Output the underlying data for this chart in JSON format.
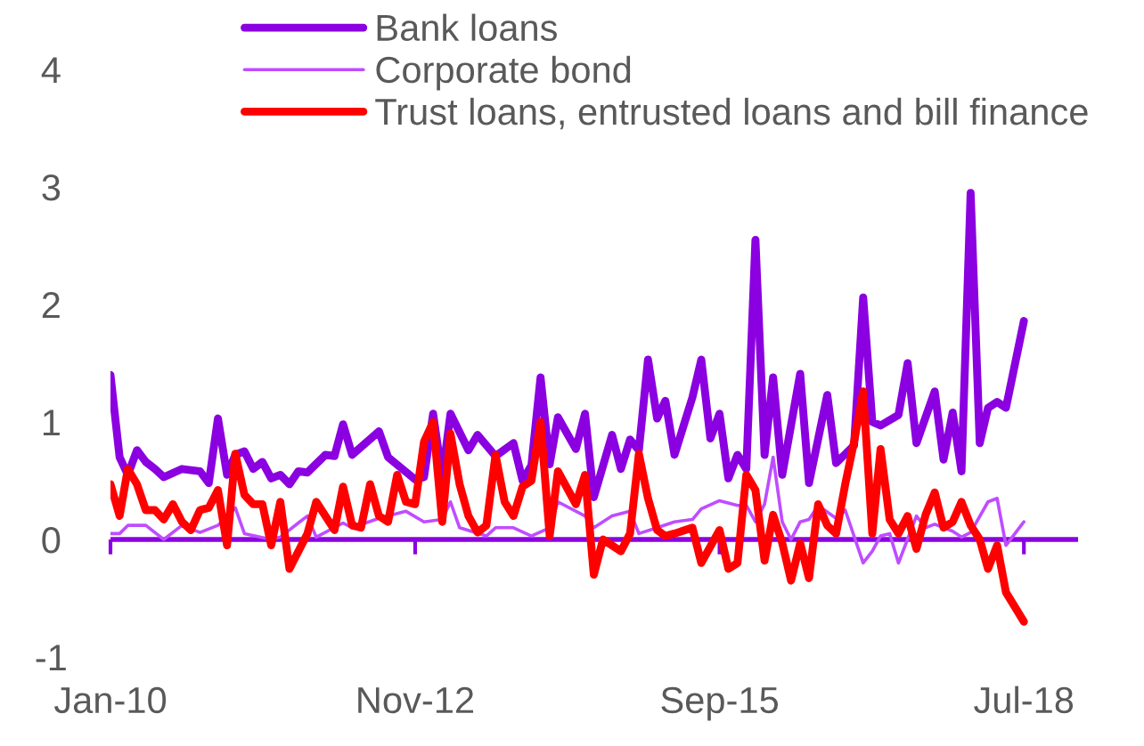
{
  "chart_data": {
    "type": "line",
    "xlim": [
      "2010-01",
      "2019-01"
    ],
    "ylim": [
      -1,
      4
    ],
    "yticks": [
      -1,
      0,
      1,
      2,
      3,
      4
    ],
    "xticks": [
      {
        "value": "2010-01",
        "label": "Jan-10"
      },
      {
        "value": "2012-11",
        "label": "Nov-12"
      },
      {
        "value": "2015-09",
        "label": "Sep-15"
      },
      {
        "value": "2018-07",
        "label": "Jul-18"
      }
    ],
    "grid": false,
    "legend": "top",
    "marker": "none",
    "line_style": "solid",
    "ref_lines": [
      {
        "axis": "y",
        "value": 0,
        "label": null,
        "color": "#8b00e0"
      }
    ],
    "series": [
      {
        "name": "Bank loans",
        "color": "#8b00e0",
        "x": [
          "2010-01",
          "2010-02",
          "2010-03",
          "2010-04",
          "2010-05",
          "2010-06",
          "2010-07",
          "2010-09",
          "2010-11",
          "2010-12",
          "2011-01",
          "2011-02",
          "2011-03",
          "2011-04",
          "2011-05",
          "2011-06",
          "2011-07",
          "2011-08",
          "2011-09",
          "2011-10",
          "2011-11",
          "2012-01",
          "2012-02",
          "2012-03",
          "2012-04",
          "2012-07",
          "2012-08",
          "2012-11",
          "2012-12",
          "2013-01",
          "2013-02",
          "2013-03",
          "2013-05",
          "2013-06",
          "2013-08",
          "2013-10",
          "2013-11",
          "2013-12",
          "2014-01",
          "2014-02",
          "2014-03",
          "2014-05",
          "2014-06",
          "2014-07",
          "2014-09",
          "2014-10",
          "2014-11",
          "2014-12",
          "2015-01",
          "2015-02",
          "2015-03",
          "2015-04",
          "2015-06",
          "2015-07",
          "2015-08",
          "2015-09",
          "2015-10",
          "2015-11",
          "2015-12",
          "2016-01",
          "2016-02",
          "2016-03",
          "2016-04",
          "2016-06",
          "2016-07",
          "2016-09",
          "2016-10",
          "2016-12",
          "2017-01",
          "2017-02",
          "2017-03",
          "2017-05",
          "2017-06",
          "2017-07",
          "2017-09",
          "2017-10",
          "2017-11",
          "2017-12",
          "2018-01",
          "2018-02",
          "2018-03",
          "2018-04",
          "2018-05",
          "2018-07"
        ],
        "values": [
          1.4,
          0.7,
          0.55,
          0.76,
          0.66,
          0.6,
          0.53,
          0.6,
          0.58,
          0.48,
          1.03,
          0.55,
          0.72,
          0.75,
          0.6,
          0.66,
          0.52,
          0.55,
          0.47,
          0.58,
          0.57,
          0.72,
          0.71,
          0.98,
          0.72,
          0.92,
          0.7,
          0.51,
          0.53,
          1.07,
          0.53,
          1.07,
          0.76,
          0.89,
          0.71,
          0.82,
          0.5,
          0.63,
          1.38,
          0.64,
          1.04,
          0.77,
          1.07,
          0.36,
          0.89,
          0.6,
          0.85,
          0.76,
          1.53,
          1.03,
          1.18,
          0.72,
          1.21,
          1.53,
          0.86,
          1.07,
          0.52,
          0.72,
          0.6,
          2.55,
          0.72,
          1.38,
          0.55,
          1.41,
          0.48,
          1.23,
          0.65,
          0.8,
          2.06,
          1.0,
          0.97,
          1.06,
          1.5,
          0.82,
          1.26,
          0.68,
          1.08,
          0.58,
          2.95,
          0.82,
          1.12,
          1.17,
          1.12,
          1.86
        ]
      },
      {
        "name": "Corporate bond",
        "color": "#bf4dff",
        "x": [
          "2010-01",
          "2010-02",
          "2010-03",
          "2010-05",
          "2010-07",
          "2010-09",
          "2010-11",
          "2011-01",
          "2011-03",
          "2011-04",
          "2011-07",
          "2011-08",
          "2011-10",
          "2011-11",
          "2011-12",
          "2012-03",
          "2012-04",
          "2012-07",
          "2012-08",
          "2012-10",
          "2012-12",
          "2013-02",
          "2013-03",
          "2013-04",
          "2013-07",
          "2013-08",
          "2013-10",
          "2013-12",
          "2014-02",
          "2014-03",
          "2014-06",
          "2014-07",
          "2014-09",
          "2014-11",
          "2014-12",
          "2015-02",
          "2015-04",
          "2015-06",
          "2015-07",
          "2015-09",
          "2015-11",
          "2015-12",
          "2016-01",
          "2016-02",
          "2016-03",
          "2016-04",
          "2016-05",
          "2016-06",
          "2016-07",
          "2016-08",
          "2016-10",
          "2016-11",
          "2017-01",
          "2017-02",
          "2017-03",
          "2017-04",
          "2017-05",
          "2017-07",
          "2017-08",
          "2017-09",
          "2017-11",
          "2017-12",
          "2018-01",
          "2018-03",
          "2018-04",
          "2018-05",
          "2018-07"
        ],
        "values": [
          0.05,
          0.05,
          0.12,
          0.12,
          0.0,
          0.12,
          0.06,
          0.12,
          0.27,
          0.05,
          0.0,
          0.02,
          0.14,
          0.2,
          0.02,
          0.14,
          0.1,
          0.18,
          0.2,
          0.24,
          0.15,
          0.17,
          0.32,
          0.1,
          0.03,
          0.1,
          0.1,
          0.03,
          0.1,
          0.32,
          0.2,
          0.1,
          0.2,
          0.24,
          0.05,
          0.1,
          0.15,
          0.17,
          0.26,
          0.33,
          0.29,
          0.29,
          0.15,
          0.3,
          0.7,
          0.15,
          0.0,
          0.15,
          0.17,
          0.29,
          0.18,
          0.25,
          -0.2,
          -0.1,
          0.03,
          0.05,
          -0.2,
          0.2,
          0.1,
          0.13,
          0.07,
          0.02,
          0.06,
          0.32,
          0.35,
          -0.05,
          0.15
        ]
      },
      {
        "name": "Trust loans, entrusted loans and bill finance",
        "color": "#ff0000",
        "x": [
          "2010-01",
          "2010-02",
          "2010-03",
          "2010-04",
          "2010-05",
          "2010-06",
          "2010-07",
          "2010-08",
          "2010-09",
          "2010-10",
          "2010-11",
          "2010-12",
          "2011-01",
          "2011-02",
          "2011-03",
          "2011-04",
          "2011-05",
          "2011-06",
          "2011-07",
          "2011-08",
          "2011-09",
          "2011-11",
          "2011-12",
          "2012-02",
          "2012-03",
          "2012-04",
          "2012-05",
          "2012-06",
          "2012-07",
          "2012-08",
          "2012-09",
          "2012-10",
          "2012-11",
          "2012-12",
          "2013-01",
          "2013-02",
          "2013-03",
          "2013-04",
          "2013-05",
          "2013-06",
          "2013-07",
          "2013-08",
          "2013-09",
          "2013-10",
          "2013-11",
          "2013-12",
          "2014-01",
          "2014-02",
          "2014-03",
          "2014-05",
          "2014-06",
          "2014-07",
          "2014-08",
          "2014-10",
          "2014-11",
          "2014-12",
          "2015-01",
          "2015-02",
          "2015-03",
          "2015-04",
          "2015-06",
          "2015-07",
          "2015-09",
          "2015-10",
          "2015-11",
          "2015-12",
          "2016-01",
          "2016-02",
          "2016-03",
          "2016-04",
          "2016-05",
          "2016-06",
          "2016-07",
          "2016-08",
          "2016-09",
          "2016-10",
          "2016-11",
          "2016-12",
          "2017-01",
          "2017-02",
          "2017-03",
          "2017-04",
          "2017-05",
          "2017-06",
          "2017-07",
          "2017-08",
          "2017-09",
          "2017-10",
          "2017-11",
          "2017-12",
          "2018-01",
          "2018-02",
          "2018-03",
          "2018-04",
          "2018-05",
          "2018-07"
        ],
        "values": [
          0.47,
          0.2,
          0.6,
          0.47,
          0.25,
          0.25,
          0.17,
          0.3,
          0.15,
          0.08,
          0.25,
          0.27,
          0.42,
          -0.05,
          0.73,
          0.38,
          0.3,
          0.3,
          -0.05,
          0.32,
          -0.25,
          0.05,
          0.32,
          0.08,
          0.45,
          0.12,
          0.1,
          0.47,
          0.2,
          0.15,
          0.55,
          0.32,
          0.3,
          0.83,
          1.0,
          0.15,
          0.9,
          0.47,
          0.2,
          0.06,
          0.12,
          0.72,
          0.32,
          0.2,
          0.45,
          0.5,
          1.0,
          0.03,
          0.58,
          0.3,
          0.55,
          -0.3,
          0.0,
          -0.1,
          0.05,
          0.73,
          0.35,
          0.08,
          0.03,
          0.05,
          0.1,
          -0.2,
          0.08,
          -0.25,
          -0.2,
          0.55,
          0.42,
          -0.18,
          0.21,
          -0.03,
          -0.35,
          -0.03,
          -0.33,
          0.3,
          0.12,
          0.05,
          0.47,
          0.83,
          1.26,
          0.05,
          0.77,
          0.17,
          0.05,
          0.2,
          -0.08,
          0.21,
          0.4,
          0.1,
          0.15,
          0.32,
          0.12,
          0.0,
          -0.25,
          -0.05,
          -0.45,
          -0.7
        ]
      }
    ]
  }
}
